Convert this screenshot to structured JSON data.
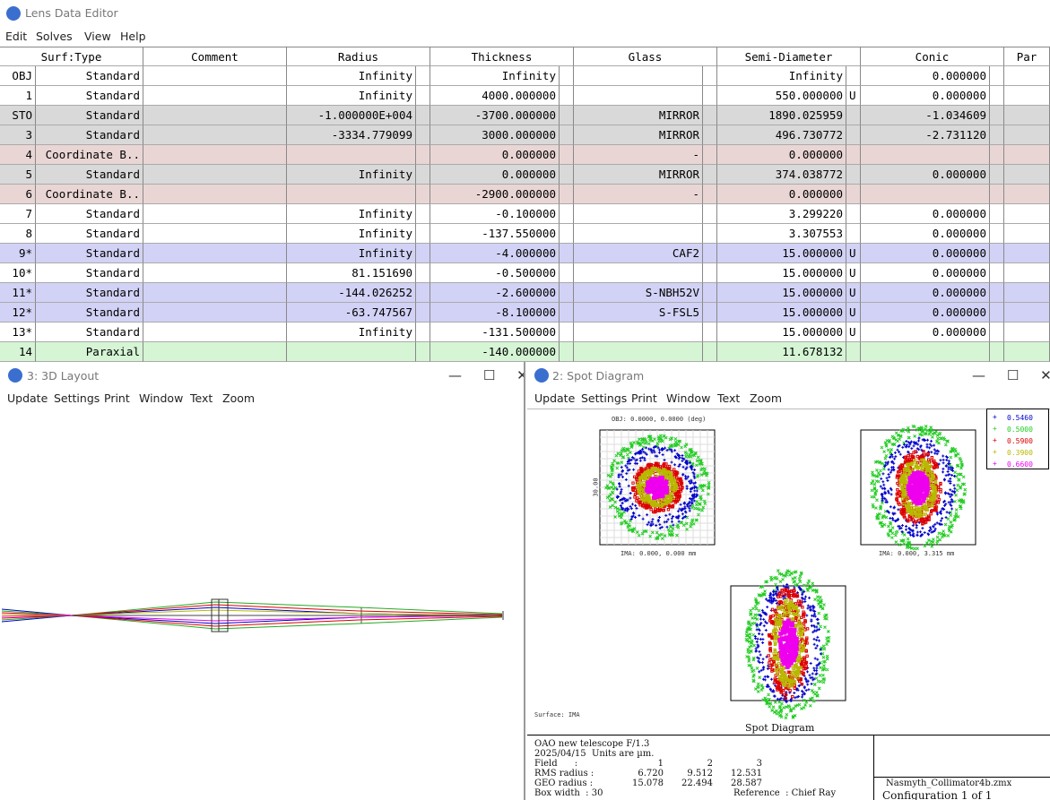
{
  "lde": {
    "title": "Lens Data Editor",
    "menu": [
      "Edit",
      "Solves",
      "View",
      "Help"
    ],
    "columns": [
      "Surf:Type",
      "Comment",
      "Radius",
      "Thickness",
      "Glass",
      "Semi-Diameter",
      "Conic",
      "Par"
    ],
    "rows": [
      {
        "surf": "OBJ",
        "type": "Standard",
        "radius": "Infinity",
        "thickness": "Infinity",
        "semi": "Infinity",
        "conic": "0.000000",
        "bg": "#ffffff"
      },
      {
        "surf": "1",
        "type": "Standard",
        "radius": "Infinity",
        "thickness": "4000.000000",
        "semi": "550.000000",
        "semi_solve": "U",
        "conic": "0.000000",
        "bg": "#ffffff"
      },
      {
        "surf": "STO",
        "type": "Standard",
        "radius": "-1.000000E+004",
        "thickness": "-3700.000000",
        "glass": "MIRROR",
        "semi": "1890.025959",
        "conic": "-1.034609",
        "bg": "#d9d9d9"
      },
      {
        "surf": "3",
        "type": "Standard",
        "radius": "-3334.779099",
        "thickness": "3000.000000",
        "glass": "MIRROR",
        "semi": "496.730772",
        "conic": "-2.731120",
        "bg": "#d9d9d9"
      },
      {
        "surf": "4",
        "type": "Coordinate B..",
        "thickness": "0.000000",
        "glass": "-",
        "semi": "0.000000",
        "bg": "#e9d6d4"
      },
      {
        "surf": "5",
        "type": "Standard",
        "radius": "Infinity",
        "thickness": "0.000000",
        "glass": "MIRROR",
        "semi": "374.038772",
        "conic": "0.000000",
        "bg": "#d9d9d9"
      },
      {
        "surf": "6",
        "type": "Coordinate B..",
        "thickness": "-2900.000000",
        "glass": "-",
        "semi": "0.000000",
        "bg": "#e9d6d4"
      },
      {
        "surf": "7",
        "type": "Standard",
        "radius": "Infinity",
        "thickness": "-0.100000",
        "semi": "3.299220",
        "conic": "0.000000",
        "bg": "#ffffff"
      },
      {
        "surf": "8",
        "type": "Standard",
        "radius": "Infinity",
        "thickness": "-137.550000",
        "semi": "3.307553",
        "conic": "0.000000",
        "bg": "#ffffff"
      },
      {
        "surf": "9*",
        "type": "Standard",
        "radius": "Infinity",
        "thickness": "-4.000000",
        "glass": "CAF2",
        "semi": "15.000000",
        "semi_solve": "U",
        "conic": "0.000000",
        "bg": "#d2d2f6"
      },
      {
        "surf": "10*",
        "type": "Standard",
        "radius": "81.151690",
        "thickness": "-0.500000",
        "semi": "15.000000",
        "semi_solve": "U",
        "conic": "0.000000",
        "bg": "#ffffff"
      },
      {
        "surf": "11*",
        "type": "Standard",
        "radius": "-144.026252",
        "thickness": "-2.600000",
        "glass": "S-NBH52V",
        "semi": "15.000000",
        "semi_solve": "U",
        "conic": "0.000000",
        "bg": "#d2d2f6"
      },
      {
        "surf": "12*",
        "type": "Standard",
        "radius": "-63.747567",
        "thickness": "-8.100000",
        "glass": "S-FSL5",
        "semi": "15.000000",
        "semi_solve": "U",
        "conic": "0.000000",
        "bg": "#d2d2f6"
      },
      {
        "surf": "13*",
        "type": "Standard",
        "radius": "Infinity",
        "thickness": "-131.500000",
        "semi": "15.000000",
        "semi_solve": "U",
        "conic": "0.000000",
        "bg": "#ffffff"
      },
      {
        "surf": "14",
        "type": "Paraxial",
        "thickness": "-140.000000",
        "semi": "11.678132",
        "bg": "#d5f5d5"
      }
    ]
  },
  "layout": {
    "title": "3: 3D Layout",
    "menu": [
      "Update",
      "Settings",
      "Print",
      "Window",
      "Text",
      "Zoom"
    ]
  },
  "spot": {
    "title": "2: Spot Diagram",
    "menu": [
      "Update",
      "Settings",
      "Print",
      "Window",
      "Text",
      "Zoom"
    ],
    "field_labels": [
      "OBJ: 0.0000, 0.0000 (deg)",
      "IMA: 0.000, 0.000 mm",
      "IMA: 0.000, 3.315 mm"
    ],
    "axis_label": "30.00",
    "surface": "Surface: IMA",
    "plot_title": "Spot Diagram",
    "legend": [
      {
        "name": "0.5460",
        "color": "#0000cc"
      },
      {
        "name": "0.5000",
        "color": "#22cc22"
      },
      {
        "name": "0.5900",
        "color": "#dd0000"
      },
      {
        "name": "0.3900",
        "color": "#b8b800"
      },
      {
        "name": "0.6600",
        "color": "#ee00ee"
      }
    ],
    "footer": {
      "title": "OAO new telescope F/1.3",
      "date": "2025/04/15  Units are µm.",
      "rows": [
        {
          "label": "Field      :",
          "values": [
            "1",
            "2",
            "3"
          ]
        },
        {
          "label": "RMS radius :",
          "values": [
            "6.720",
            "9.512",
            "12.531"
          ]
        },
        {
          "label": "GEO radius :",
          "values": [
            "15.078",
            "22.494",
            "28.587"
          ]
        }
      ],
      "box_width": "Box width  : 30",
      "reference": "Reference  : Chief Ray",
      "file": "Nasmyth_Collimator4b.zmx",
      "config": "Configuration 1 of 1"
    }
  }
}
